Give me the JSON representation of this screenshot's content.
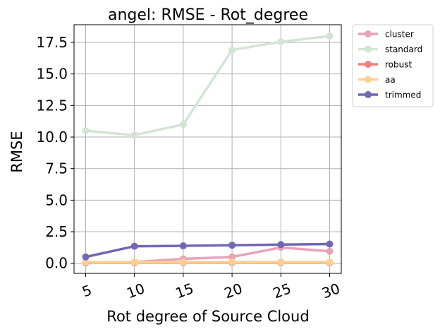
{
  "chart_data": {
    "type": "line",
    "title": "angel: RMSE - Rot_degree",
    "xlabel": "Rot degree of Source Cloud",
    "ylabel": "RMSE",
    "x": [
      5,
      10,
      15,
      20,
      25,
      30
    ],
    "x_ticks": [
      "5",
      "10",
      "15",
      "20",
      "25",
      "30"
    ],
    "y_ticks": [
      "0.0",
      "2.5",
      "5.0",
      "7.5",
      "10.0",
      "12.5",
      "15.0",
      "17.5"
    ],
    "ylim": [
      -0.8,
      18.9
    ],
    "grid": true,
    "legend_position": "outside-top-right",
    "series": [
      {
        "name": "cluster",
        "color": "#e8a3b9",
        "values": [
          0.05,
          0.1,
          0.35,
          0.5,
          1.25,
          0.95
        ]
      },
      {
        "name": "standard",
        "color": "#d4e4d4",
        "values": [
          10.5,
          10.15,
          11.0,
          16.9,
          17.55,
          18.0
        ]
      },
      {
        "name": "robust",
        "color": "#f28080",
        "values": [
          0.05,
          0.05,
          0.05,
          0.05,
          0.05,
          0.05
        ]
      },
      {
        "name": "aa",
        "color": "#fdd090",
        "values": [
          0.1,
          0.1,
          0.1,
          0.1,
          0.1,
          0.1
        ]
      },
      {
        "name": "trimmed",
        "color": "#7068b4",
        "values": [
          0.5,
          1.35,
          1.38,
          1.43,
          1.48,
          1.52
        ]
      }
    ]
  }
}
